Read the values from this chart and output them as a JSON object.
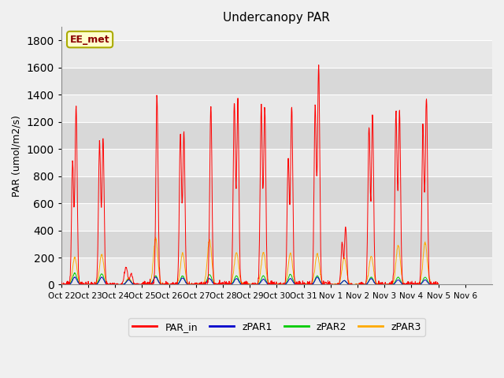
{
  "title": "Undercanopy PAR",
  "ylabel": "PAR (umol/m2/s)",
  "ylim": [
    0,
    1900
  ],
  "yticks": [
    0,
    200,
    400,
    600,
    800,
    1000,
    1200,
    1400,
    1600,
    1800
  ],
  "annotation": "EE_met",
  "background_color": "#f0f0f0",
  "plot_bg_alternating": [
    "#e8e8e8",
    "#d8d8d8"
  ],
  "grid_color": "#ffffff",
  "colors": {
    "PAR_in": "#ff0000",
    "zPAR1": "#0000cc",
    "zPAR2": "#00cc00",
    "zPAR3": "#ffaa00"
  },
  "xtick_labels": [
    "Oct 22",
    "Oct 23",
    "Oct 24",
    "Oct 25",
    "Oct 26",
    "Oct 27",
    "Oct 28",
    "Oct 29",
    "Oct 30",
    "Oct 31",
    "Nov 1",
    "Nov 2",
    "Nov 3",
    "Nov 4",
    "Nov 5",
    "Nov 6"
  ],
  "n_days": 16,
  "pts_per_day": 96,
  "day_peaks_PAR_in": [
    1310,
    1090,
    130,
    1400,
    1120,
    1330,
    1350,
    1310,
    1320,
    1620,
    430,
    1250,
    1280,
    1380,
    0,
    0
  ],
  "day_secondary_PAR_in": [
    900,
    1060,
    0,
    0,
    1120,
    0,
    1340,
    1310,
    930,
    1310,
    310,
    1160,
    1280,
    1170,
    0,
    0
  ],
  "day_peaks_zPAR1": [
    55,
    55,
    35,
    55,
    50,
    45,
    45,
    40,
    45,
    55,
    30,
    45,
    35,
    35,
    0,
    0
  ],
  "day_peaks_zPAR2": [
    85,
    80,
    40,
    65,
    65,
    75,
    65,
    65,
    75,
    65,
    30,
    55,
    55,
    55,
    0,
    0
  ],
  "day_peaks_zPAR3": [
    200,
    220,
    50,
    340,
    230,
    330,
    240,
    240,
    230,
    230,
    200,
    210,
    290,
    310,
    0,
    0
  ],
  "band_ranges": [
    [
      0,
      200
    ],
    [
      200,
      400
    ],
    [
      400,
      600
    ],
    [
      600,
      800
    ],
    [
      800,
      1000
    ],
    [
      1000,
      1200
    ],
    [
      1200,
      1400
    ],
    [
      1400,
      1600
    ],
    [
      1600,
      1800
    ]
  ],
  "band_colors": [
    "#e8e8e8",
    "#d8d8d8",
    "#e8e8e8",
    "#d8d8d8",
    "#e8e8e8",
    "#d8d8d8",
    "#e8e8e8",
    "#d8d8d8",
    "#e8e8e8"
  ]
}
